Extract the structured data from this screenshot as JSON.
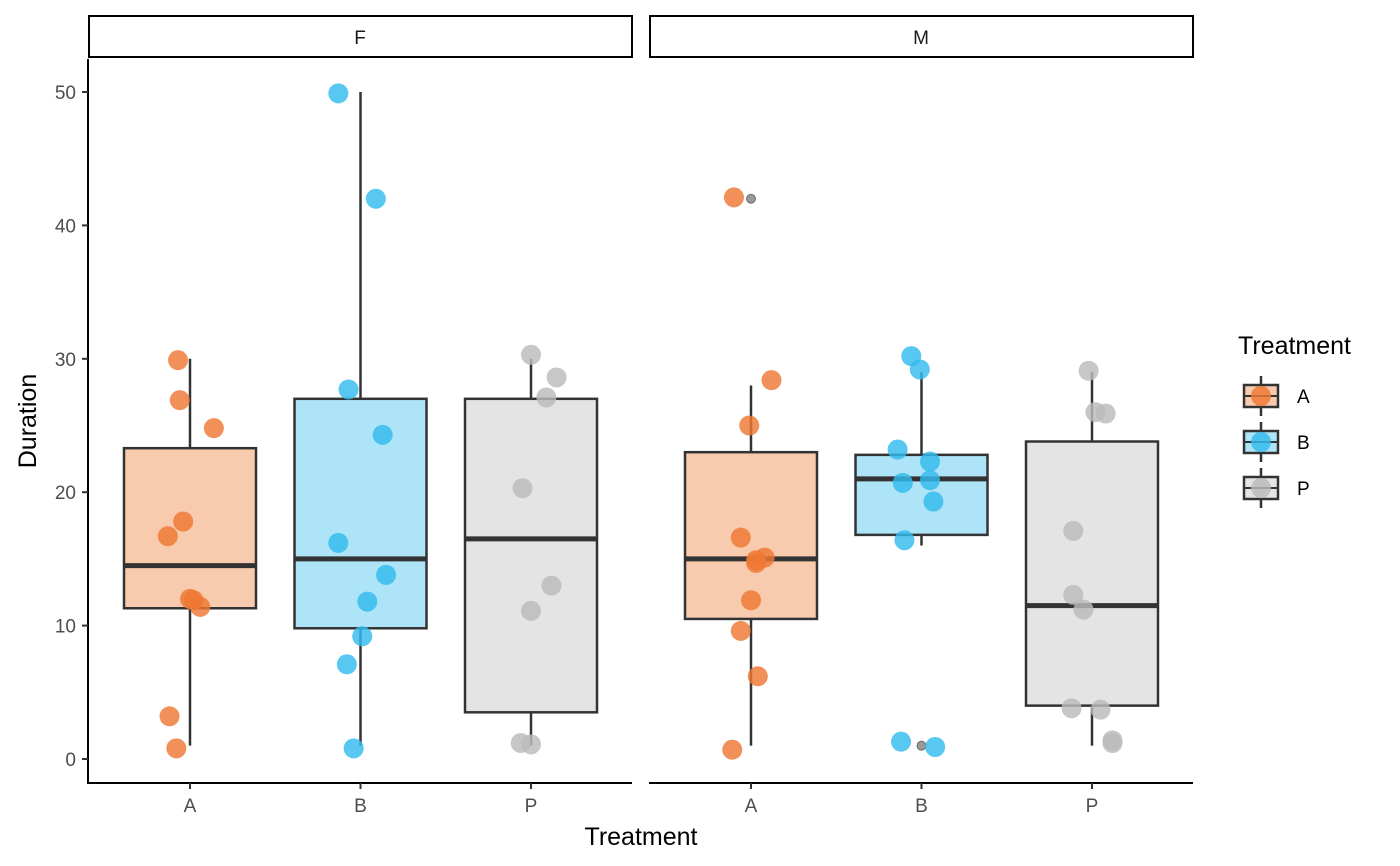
{
  "chart_data": {
    "type": "boxplot",
    "title": "",
    "xlabel": "Treatment",
    "ylabel": "Duration",
    "ylim": [
      -1.8,
      52.5
    ],
    "yticks": [
      0,
      10,
      20,
      30,
      40,
      50
    ],
    "ytick_labels": [
      "0",
      "10",
      "20",
      "30",
      "40",
      "50"
    ],
    "categories": [
      "A",
      "B",
      "P"
    ],
    "facets": [
      "F",
      "M"
    ],
    "grid": false,
    "legend": {
      "title": "Treatment",
      "position": "right",
      "entries": [
        {
          "label": "A",
          "point_color": "#EE7733",
          "fill_color": "#F8CAAE"
        },
        {
          "label": "B",
          "point_color": "#33BBEE",
          "fill_color": "#ADE4F7"
        },
        {
          "label": "P",
          "point_color": "#BBBBBB",
          "fill_color": "#E4E4E4"
        }
      ]
    },
    "panels": [
      {
        "facet": "F",
        "groups": [
          {
            "category": "A",
            "box": {
              "whisker_low": 1,
              "q1": 11.3,
              "median": 14.5,
              "q3": 23.3,
              "whisker_high": 30
            },
            "outliers": [],
            "points": [
              [
                -0.07,
                29.9
              ],
              [
                -0.06,
                26.9
              ],
              [
                0.14,
                24.8
              ],
              [
                -0.04,
                17.8
              ],
              [
                -0.13,
                16.7
              ],
              [
                0.0,
                12.0
              ],
              [
                0.02,
                11.9
              ],
              [
                0.06,
                11.4
              ],
              [
                -0.12,
                3.2
              ],
              [
                -0.08,
                0.8
              ]
            ]
          },
          {
            "category": "B",
            "box": {
              "whisker_low": 1,
              "q1": 9.8,
              "median": 15.0,
              "q3": 27.0,
              "whisker_high": 50
            },
            "outliers": [],
            "points": [
              [
                -0.13,
                49.9
              ],
              [
                0.09,
                42.0
              ],
              [
                -0.07,
                27.7
              ],
              [
                0.13,
                24.3
              ],
              [
                -0.13,
                16.2
              ],
              [
                0.15,
                13.8
              ],
              [
                0.04,
                11.8
              ],
              [
                0.01,
                9.2
              ],
              [
                -0.08,
                7.1
              ],
              [
                -0.04,
                0.8
              ]
            ]
          },
          {
            "category": "P",
            "box": {
              "whisker_low": 1,
              "q1": 3.5,
              "median": 16.5,
              "q3": 27.0,
              "whisker_high": 30
            },
            "outliers": [],
            "points": [
              [
                0.0,
                30.3
              ],
              [
                0.15,
                28.6
              ],
              [
                0.09,
                27.1
              ],
              [
                -0.05,
                20.3
              ],
              [
                0.12,
                13.0
              ],
              [
                0.0,
                11.1
              ],
              [
                -0.06,
                1.2
              ],
              [
                0.0,
                1.1
              ]
            ]
          }
        ]
      },
      {
        "facet": "M",
        "groups": [
          {
            "category": "A",
            "box": {
              "whisker_low": 1,
              "q1": 10.5,
              "median": 15.0,
              "q3": 23.0,
              "whisker_high": 28
            },
            "outliers": [
              42
            ],
            "points": [
              [
                -0.1,
                42.1
              ],
              [
                0.12,
                28.4
              ],
              [
                -0.01,
                25.0
              ],
              [
                -0.06,
                16.6
              ],
              [
                0.03,
                14.9
              ],
              [
                0.08,
                15.1
              ],
              [
                0.03,
                14.7
              ],
              [
                0.0,
                11.9
              ],
              [
                -0.06,
                9.6
              ],
              [
                0.04,
                6.2
              ],
              [
                -0.11,
                0.7
              ]
            ]
          },
          {
            "category": "B",
            "box": {
              "whisker_low": 16,
              "q1": 16.8,
              "median": 21.0,
              "q3": 22.8,
              "whisker_high": 29
            },
            "outliers": [
              1
            ],
            "points": [
              [
                -0.06,
                30.2
              ],
              [
                -0.01,
                29.2
              ],
              [
                -0.14,
                23.2
              ],
              [
                0.05,
                22.3
              ],
              [
                -0.11,
                20.7
              ],
              [
                0.05,
                20.9
              ],
              [
                0.07,
                19.3
              ],
              [
                -0.1,
                16.4
              ],
              [
                -0.12,
                1.3
              ],
              [
                0.08,
                0.9
              ]
            ]
          },
          {
            "category": "P",
            "box": {
              "whisker_low": 1,
              "q1": 4.0,
              "median": 11.5,
              "q3": 23.8,
              "whisker_high": 29
            },
            "outliers": [],
            "points": [
              [
                -0.02,
                29.1
              ],
              [
                0.02,
                26.0
              ],
              [
                0.08,
                25.9
              ],
              [
                -0.11,
                17.1
              ],
              [
                -0.11,
                12.3
              ],
              [
                -0.05,
                11.2
              ],
              [
                -0.12,
                3.8
              ],
              [
                0.05,
                3.7
              ],
              [
                0.12,
                1.4
              ],
              [
                0.12,
                1.2
              ]
            ]
          }
        ]
      }
    ]
  }
}
